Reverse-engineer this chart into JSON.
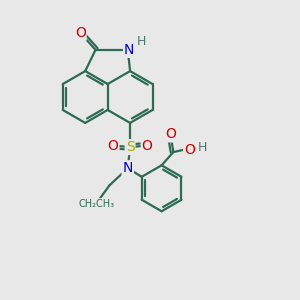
{
  "bg_color": "#e8e8e8",
  "bond_color": "#2d6b52",
  "bond_width": 1.6,
  "atom_colors": {
    "O": "#cc0000",
    "N": "#0000cc",
    "S": "#aaaa00",
    "H": "#4a7a6a",
    "C": "#2d6b52"
  },
  "font_size": 10,
  "font_size_h": 9
}
